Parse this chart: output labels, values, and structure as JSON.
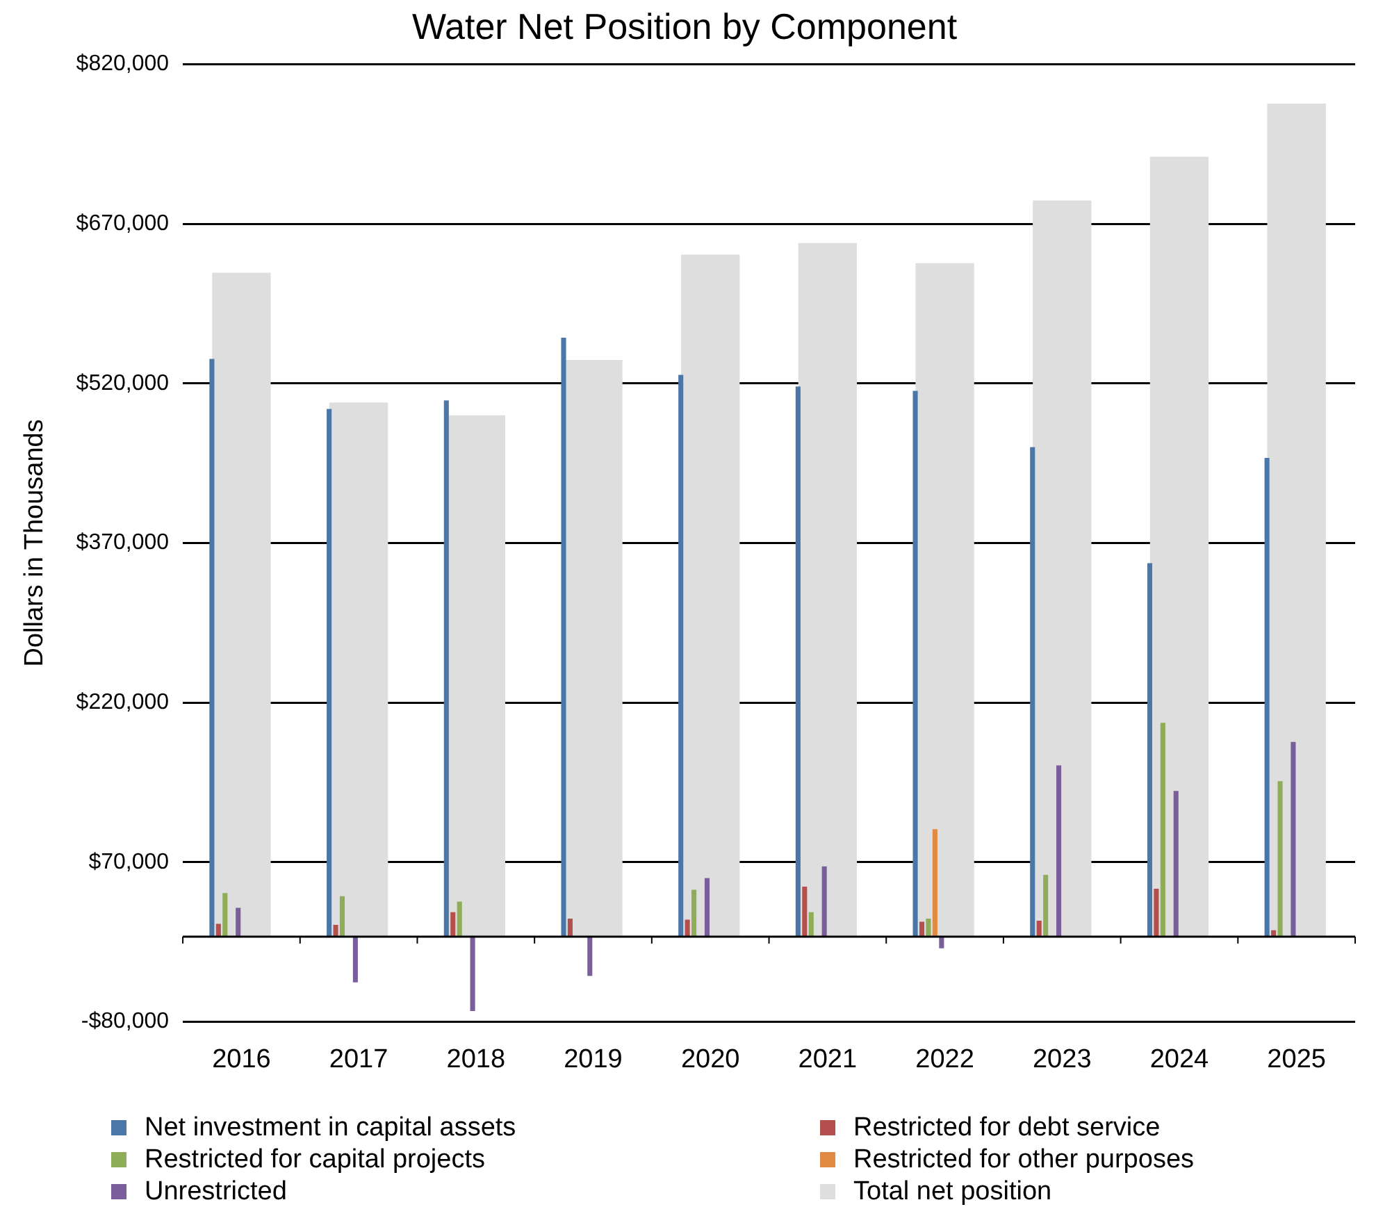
{
  "chart_data": {
    "type": "bar",
    "title": "Water Net Position by Component",
    "ylabel": "Dollars in Thousands",
    "categories": [
      "2016",
      "2017",
      "2018",
      "2019",
      "2020",
      "2021",
      "2022",
      "2023",
      "2024",
      "2025"
    ],
    "series": [
      {
        "name": "Net investment in capital assets",
        "color": "#4a76a8",
        "values": [
          543000,
          496000,
          504000,
          563000,
          528000,
          517000,
          513000,
          460000,
          351000,
          450000
        ]
      },
      {
        "name": "Restricted for debt service",
        "color": "#b3504d",
        "values": [
          12000,
          11000,
          23000,
          17000,
          16000,
          47000,
          14000,
          15000,
          45000,
          6000
        ]
      },
      {
        "name": "Restricted for capital projects",
        "color": "#8fac58",
        "values": [
          41000,
          38000,
          33000,
          null,
          44000,
          23000,
          17000,
          58000,
          201000,
          146000
        ]
      },
      {
        "name": "Restricted for other purposes",
        "color": "#e08a44",
        "values": [
          null,
          null,
          null,
          null,
          null,
          null,
          101000,
          null,
          null,
          null
        ]
      },
      {
        "name": "Unrestricted",
        "color": "#7a5e9c",
        "values": [
          27000,
          -43000,
          -70000,
          -37000,
          55000,
          66000,
          -11000,
          161000,
          137000,
          183000
        ]
      },
      {
        "name": "Total net position",
        "color": "#dedede",
        "values": [
          624000,
          502000,
          490000,
          542000,
          641000,
          652000,
          633000,
          692000,
          733000,
          783000
        ]
      }
    ],
    "ylim": [
      -80000,
      820000
    ],
    "yticks": [
      {
        "value": -80000,
        "label": "-$80,000"
      },
      {
        "value": 70000,
        "label": "$70,000"
      },
      {
        "value": 220000,
        "label": "$220,000"
      },
      {
        "value": 370000,
        "label": "$370,000"
      },
      {
        "value": 520000,
        "label": "$520,000"
      },
      {
        "value": 670000,
        "label": "$670,000"
      },
      {
        "value": 820000,
        "label": "$820,000"
      }
    ],
    "grid": "y",
    "legend": "bottom"
  }
}
